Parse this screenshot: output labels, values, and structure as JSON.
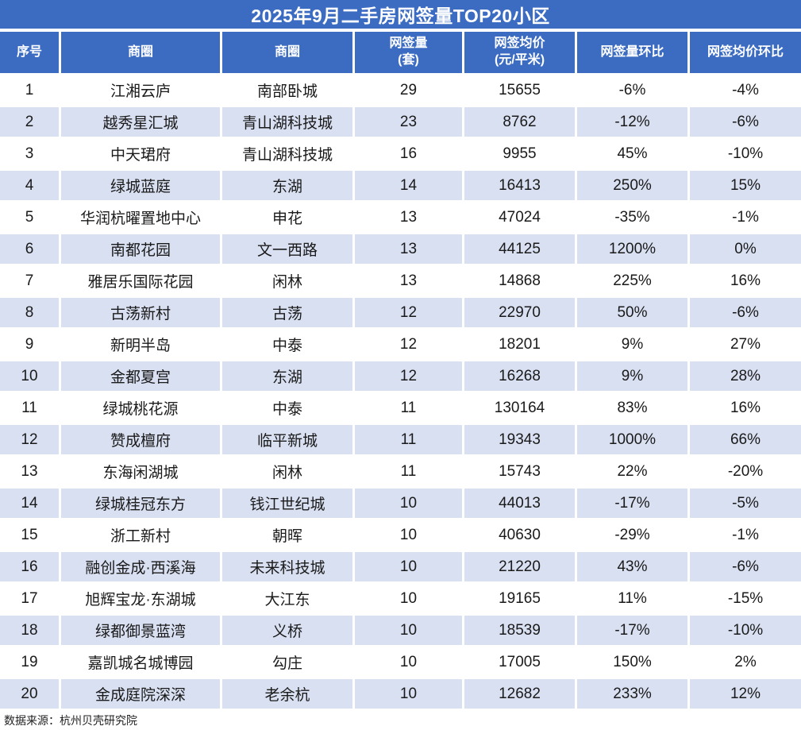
{
  "colors": {
    "header_blue": "#3C6CC2",
    "stripe_blue": "#D9E0F2",
    "text": "#1A1A1A"
  },
  "chart_data": {
    "type": "table",
    "title": "2025年9月二手房网签量TOP20小区",
    "columns": [
      "序号",
      "商圈",
      "商圈",
      "网签量\n(套)",
      "网签均价\n(元/平米)",
      "网签量环比",
      "网签均价环比"
    ],
    "rows": [
      [
        "1",
        "江湘云庐",
        "南部卧城",
        "29",
        "15655",
        "-6%",
        "-4%"
      ],
      [
        "2",
        "越秀星汇城",
        "青山湖科技城",
        "23",
        "8762",
        "-12%",
        "-6%"
      ],
      [
        "3",
        "中天珺府",
        "青山湖科技城",
        "16",
        "9955",
        "45%",
        "-10%"
      ],
      [
        "4",
        "绿城蓝庭",
        "东湖",
        "14",
        "16413",
        "250%",
        "15%"
      ],
      [
        "5",
        "华润杭曜置地中心",
        "申花",
        "13",
        "47024",
        "-35%",
        "-1%"
      ],
      [
        "6",
        "南都花园",
        "文一西路",
        "13",
        "44125",
        "1200%",
        "0%"
      ],
      [
        "7",
        "雅居乐国际花园",
        "闲林",
        "13",
        "14868",
        "225%",
        "16%"
      ],
      [
        "8",
        "古荡新村",
        "古荡",
        "12",
        "22970",
        "50%",
        "-6%"
      ],
      [
        "9",
        "新明半岛",
        "中泰",
        "12",
        "18201",
        "9%",
        "27%"
      ],
      [
        "10",
        "金都夏宫",
        "东湖",
        "12",
        "16268",
        "9%",
        "28%"
      ],
      [
        "11",
        "绿城桃花源",
        "中泰",
        "11",
        "130164",
        "83%",
        "16%"
      ],
      [
        "12",
        "赞成檀府",
        "临平新城",
        "11",
        "19343",
        "1000%",
        "66%"
      ],
      [
        "13",
        "东海闲湖城",
        "闲林",
        "11",
        "15743",
        "22%",
        "-20%"
      ],
      [
        "14",
        "绿城桂冠东方",
        "钱江世纪城",
        "10",
        "44013",
        "-17%",
        "-5%"
      ],
      [
        "15",
        "浙工新村",
        "朝晖",
        "10",
        "40630",
        "-29%",
        "-1%"
      ],
      [
        "16",
        "融创金成·西溪海",
        "未来科技城",
        "10",
        "21220",
        "43%",
        "-6%"
      ],
      [
        "17",
        "旭辉宝龙·东湖城",
        "大江东",
        "10",
        "19165",
        "11%",
        "-15%"
      ],
      [
        "18",
        "绿都御景蓝湾",
        "义桥",
        "10",
        "18539",
        "-17%",
        "-10%"
      ],
      [
        "19",
        "嘉凯城名城博园",
        "勾庄",
        "10",
        "17005",
        "150%",
        "2%"
      ],
      [
        "20",
        "金成庭院深深",
        "老余杭",
        "10",
        "12682",
        "233%",
        "12%"
      ]
    ],
    "source_note": "数据来源：杭州贝壳研究院"
  }
}
